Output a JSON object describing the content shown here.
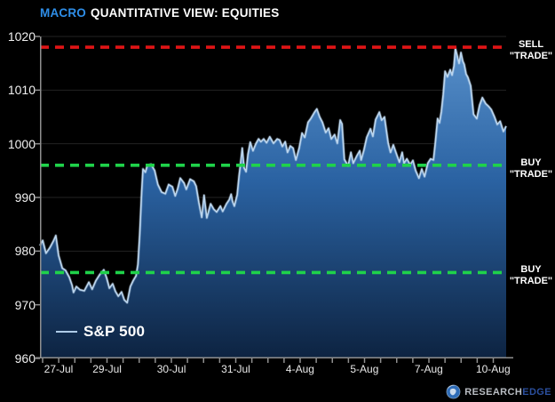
{
  "header": {
    "title_accent": "MACRO",
    "title_rest": "QUANTITATIVE VIEW: EQUITIES"
  },
  "chart_data": {
    "type": "area",
    "title": "MACRO QUANTITATIVE VIEW: EQUITIES",
    "xlabel": "",
    "ylabel": "",
    "ylim": [
      960,
      1020
    ],
    "yticks": [
      960,
      970,
      980,
      990,
      1000,
      1010,
      1020
    ],
    "grid": true,
    "xticks": [
      {
        "label": "27-Jul",
        "pos": 4.0
      },
      {
        "label": "29-Jul",
        "pos": 14.4
      },
      {
        "label": "30-Jul",
        "pos": 28.2
      },
      {
        "label": "31-Jul",
        "pos": 42.0
      },
      {
        "label": "4-Aug",
        "pos": 55.8
      },
      {
        "label": "5-Aug",
        "pos": 69.6
      },
      {
        "label": "7-Aug",
        "pos": 83.4
      },
      {
        "label": "10-Aug",
        "pos": 97.2
      }
    ],
    "tick_marks": {
      "start": 0.57,
      "step": 3.4525,
      "count": 29
    },
    "levels": [
      {
        "value": 1018,
        "color": "#e01416",
        "label_line1": "SELL",
        "label_line2": "\"TRADE\""
      },
      {
        "value": 996,
        "color": "#1fd24a",
        "label_line1": "BUY",
        "label_line2": "\"TRADE\""
      },
      {
        "value": 976,
        "color": "#1fd24a",
        "label_line1": "BUY",
        "label_line2": "\"TRADE\""
      }
    ],
    "legend": {
      "position": "bottom-left",
      "label": "S&P 500"
    },
    "series": [
      {
        "name": "S&P 500",
        "line_color": "#bcd6ee",
        "fill_top": "#5b93cd",
        "fill_mid": "#2a62a2",
        "fill_bottom": "#0d2341",
        "points": [
          [
            0,
            981.0
          ],
          [
            0.6,
            982.0
          ],
          [
            1.3,
            979.6
          ],
          [
            2.1,
            980.6
          ],
          [
            2.9,
            981.9
          ],
          [
            3.4,
            982.9
          ],
          [
            4.0,
            979.2
          ],
          [
            4.8,
            976.8
          ],
          [
            5.5,
            976.4
          ],
          [
            6.3,
            975.1
          ],
          [
            6.9,
            973.6
          ],
          [
            7.2,
            972.3
          ],
          [
            7.8,
            973.4
          ],
          [
            8.6,
            972.8
          ],
          [
            9.5,
            972.6
          ],
          [
            10.5,
            974.2
          ],
          [
            11.2,
            972.9
          ],
          [
            12.0,
            974.5
          ],
          [
            12.8,
            975.6
          ],
          [
            13.7,
            976.5
          ],
          [
            14.3,
            975.0
          ],
          [
            14.9,
            973.1
          ],
          [
            15.6,
            973.9
          ],
          [
            16.2,
            972.5
          ],
          [
            16.8,
            971.6
          ],
          [
            17.5,
            972.4
          ],
          [
            18.1,
            970.9
          ],
          [
            18.7,
            970.4
          ],
          [
            19.4,
            973.4
          ],
          [
            20.0,
            974.5
          ],
          [
            20.6,
            975.4
          ],
          [
            21.0,
            977.5
          ],
          [
            21.4,
            983.0
          ],
          [
            21.8,
            991.0
          ],
          [
            22.1,
            995.3
          ],
          [
            22.6,
            994.7
          ],
          [
            23.0,
            995.9
          ],
          [
            23.8,
            996.2
          ],
          [
            24.6,
            995.0
          ],
          [
            25.3,
            992.4
          ],
          [
            26.1,
            991.0
          ],
          [
            26.9,
            990.7
          ],
          [
            27.6,
            992.4
          ],
          [
            28.4,
            992.0
          ],
          [
            29.0,
            990.3
          ],
          [
            29.5,
            991.5
          ],
          [
            30.1,
            993.6
          ],
          [
            30.9,
            992.7
          ],
          [
            31.4,
            991.5
          ],
          [
            32.2,
            993.4
          ],
          [
            33.0,
            993.0
          ],
          [
            33.5,
            992.1
          ],
          [
            34.1,
            989.0
          ],
          [
            34.7,
            986.3
          ],
          [
            35.2,
            990.4
          ],
          [
            35.8,
            986.2
          ],
          [
            36.6,
            988.8
          ],
          [
            37.3,
            987.8
          ],
          [
            37.9,
            987.3
          ],
          [
            38.7,
            988.4
          ],
          [
            39.2,
            987.4
          ],
          [
            40.0,
            988.8
          ],
          [
            40.6,
            989.6
          ],
          [
            41.0,
            990.6
          ],
          [
            41.3,
            989.3
          ],
          [
            41.7,
            988.4
          ],
          [
            42.3,
            990.5
          ],
          [
            42.7,
            994.0
          ],
          [
            43.0,
            996.2
          ],
          [
            43.4,
            999.2
          ],
          [
            43.8,
            995.5
          ],
          [
            44.2,
            994.8
          ],
          [
            44.6,
            998.0
          ],
          [
            45.1,
            1000.3
          ],
          [
            45.7,
            998.7
          ],
          [
            46.3,
            1000.0
          ],
          [
            46.9,
            1000.9
          ],
          [
            47.4,
            1000.4
          ],
          [
            48.0,
            1000.9
          ],
          [
            48.6,
            1000.2
          ],
          [
            49.3,
            1001.3
          ],
          [
            50.1,
            1000.1
          ],
          [
            50.9,
            1000.9
          ],
          [
            51.4,
            1000.7
          ],
          [
            52.0,
            999.5
          ],
          [
            52.6,
            1000.4
          ],
          [
            53.1,
            998.4
          ],
          [
            53.7,
            999.6
          ],
          [
            54.3,
            999.2
          ],
          [
            54.9,
            997.0
          ],
          [
            55.6,
            999.2
          ],
          [
            56.2,
            1002.0
          ],
          [
            56.8,
            1001.2
          ],
          [
            57.5,
            1004.0
          ],
          [
            58.1,
            1004.7
          ],
          [
            58.9,
            1005.9
          ],
          [
            59.4,
            1006.5
          ],
          [
            60.0,
            1005.0
          ],
          [
            60.6,
            1004.0
          ],
          [
            61.3,
            1002.1
          ],
          [
            61.9,
            1002.9
          ],
          [
            62.5,
            1000.9
          ],
          [
            63.2,
            1001.7
          ],
          [
            63.8,
            1000.1
          ],
          [
            64.4,
            1004.4
          ],
          [
            64.8,
            1003.7
          ],
          [
            65.3,
            997.1
          ],
          [
            66.1,
            995.9
          ],
          [
            66.7,
            998.4
          ],
          [
            67.2,
            996.4
          ],
          [
            68.0,
            997.8
          ],
          [
            68.6,
            998.7
          ],
          [
            68.9,
            997.0
          ],
          [
            69.5,
            998.9
          ],
          [
            70.1,
            1001.2
          ],
          [
            70.9,
            1002.8
          ],
          [
            71.4,
            1001.4
          ],
          [
            72.0,
            1004.5
          ],
          [
            72.8,
            1005.9
          ],
          [
            73.3,
            1004.4
          ],
          [
            73.9,
            1005.0
          ],
          [
            74.7,
            1000.1
          ],
          [
            75.2,
            998.4
          ],
          [
            75.8,
            999.8
          ],
          [
            76.6,
            997.8
          ],
          [
            77.1,
            996.6
          ],
          [
            77.7,
            998.4
          ],
          [
            78.1,
            996.4
          ],
          [
            78.7,
            997.2
          ],
          [
            79.4,
            996.1
          ],
          [
            80.0,
            996.9
          ],
          [
            80.6,
            995.0
          ],
          [
            81.3,
            993.6
          ],
          [
            81.9,
            995.3
          ],
          [
            82.5,
            993.9
          ],
          [
            83.2,
            996.4
          ],
          [
            83.8,
            997.2
          ],
          [
            84.4,
            997.0
          ],
          [
            84.8,
            1000.2
          ],
          [
            85.3,
            1004.7
          ],
          [
            85.7,
            1003.9
          ],
          [
            86.1,
            1006.0
          ],
          [
            86.5,
            1009.2
          ],
          [
            86.9,
            1013.5
          ],
          [
            87.4,
            1012.5
          ],
          [
            88.0,
            1013.8
          ],
          [
            88.4,
            1012.8
          ],
          [
            88.8,
            1014.5
          ],
          [
            89.1,
            1017.8
          ],
          [
            89.5,
            1016.4
          ],
          [
            89.9,
            1015.0
          ],
          [
            90.3,
            1017.0
          ],
          [
            90.7,
            1015.4
          ],
          [
            91.0,
            1014.8
          ],
          [
            91.4,
            1013.0
          ],
          [
            91.8,
            1012.4
          ],
          [
            92.4,
            1010.8
          ],
          [
            93.0,
            1005.5
          ],
          [
            93.7,
            1004.7
          ],
          [
            94.3,
            1007.2
          ],
          [
            94.9,
            1008.6
          ],
          [
            95.6,
            1007.5
          ],
          [
            96.2,
            1007.0
          ],
          [
            96.8,
            1006.4
          ],
          [
            97.5,
            1005.0
          ],
          [
            98.1,
            1003.6
          ],
          [
            98.7,
            1004.2
          ],
          [
            99.4,
            1002.3
          ],
          [
            100,
            1003.3
          ]
        ]
      }
    ]
  },
  "branding": {
    "logo_text_primary": "RESEARCH",
    "logo_text_accent": "EDGE",
    "globe_icon": "globe-icon"
  },
  "colors": {
    "background": "#000000",
    "title_accent": "#2e8ee8",
    "axis": "#8f8f8f",
    "gridline": "#232323",
    "tick_label": "#f0f0f0",
    "sell_line": "#e01416",
    "buy_line": "#1fd24a"
  }
}
